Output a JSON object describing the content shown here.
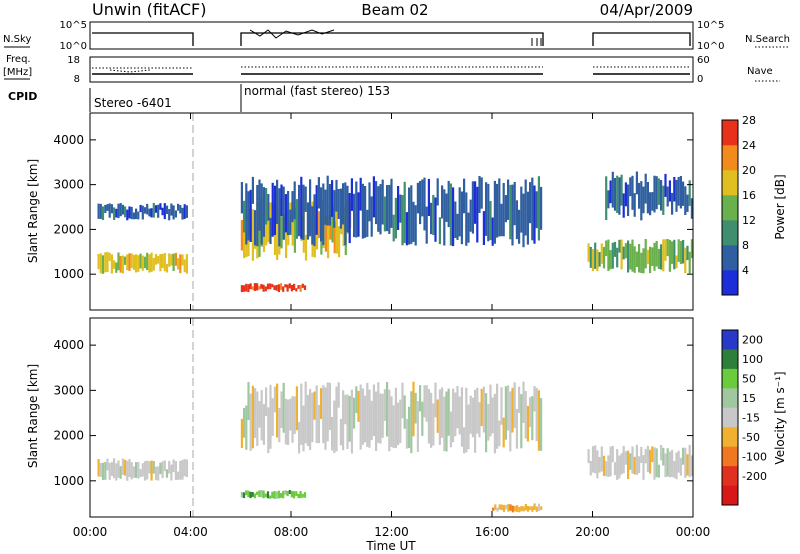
{
  "header": {
    "station": "Unwin (fitACF)",
    "beam": "Beam 02",
    "date": "04/Apr/2009"
  },
  "strip_labels": {
    "nsky": "N.Sky",
    "nsearch": "N.Search",
    "freq": "Freq.",
    "freq_unit": "[MHz]",
    "nave": "Nave",
    "cpid": "CPID",
    "nsky_ticks": [
      "10^5",
      "10^0"
    ],
    "freq_ticks": [
      "18",
      "8"
    ],
    "nave_ticks": [
      "60",
      "0"
    ]
  },
  "cpid_labels": [
    "Stereo -6401",
    "normal (fast stereo) 153"
  ],
  "chart_data": [
    {
      "type": "heatmap",
      "title": "",
      "xlabel": "Time UT",
      "ylabel": "Slant Range [km]",
      "colorbar_label": "Power [dB]",
      "x_ticks": [
        "00:00",
        "04:00",
        "08:00",
        "12:00",
        "16:00",
        "20:00",
        "00:00"
      ],
      "y_ticks": [
        1000,
        2000,
        3000,
        4000
      ],
      "ylim": [
        200,
        4600
      ],
      "xlim_hours": [
        0,
        24
      ],
      "colorbar_ticks": [
        4,
        8,
        12,
        16,
        20,
        24,
        28
      ],
      "colorbar_colors": [
        "#1c2ed8",
        "#2f5fa0",
        "#3f8f6f",
        "#6ab04c",
        "#e0c020",
        "#f28a1c",
        "#e8301a"
      ],
      "data_gaps_hours": [
        [
          4.2,
          6.0
        ],
        [
          18.0,
          19.8
        ]
      ],
      "echo_bands": [
        {
          "t": [
            0.3,
            3.9
          ],
          "range": [
            1000,
            1500
          ],
          "power": 20
        },
        {
          "t": [
            0.3,
            3.9
          ],
          "range": [
            2200,
            2600
          ],
          "power": 6
        },
        {
          "t": [
            6.0,
            8.6
          ],
          "range": [
            600,
            800
          ],
          "power": 28
        },
        {
          "t": [
            6.0,
            10.4
          ],
          "range": [
            1300,
            2700
          ],
          "power": 18
        },
        {
          "t": [
            6.0,
            18.0
          ],
          "range": [
            1600,
            3200
          ],
          "power": 8
        },
        {
          "t": [
            19.8,
            24.0
          ],
          "range": [
            1000,
            1800
          ],
          "power": 16
        },
        {
          "t": [
            20.5,
            24.0
          ],
          "range": [
            2200,
            3300
          ],
          "power": 8
        }
      ]
    },
    {
      "type": "heatmap",
      "title": "",
      "xlabel": "Time UT",
      "ylabel": "Slant Range [km]",
      "colorbar_label": "Velocity [m s⁻¹]",
      "x_ticks": [
        "00:00",
        "04:00",
        "08:00",
        "12:00",
        "16:00",
        "20:00",
        "00:00"
      ],
      "y_ticks": [
        1000,
        2000,
        3000,
        4000
      ],
      "ylim": [
        200,
        4600
      ],
      "xlim_hours": [
        0,
        24
      ],
      "colorbar_ticks": [
        200,
        100,
        50,
        15,
        -15,
        -50,
        -100,
        -200
      ],
      "colorbar_colors": [
        "#2838c8",
        "#2d7f3a",
        "#6acb3c",
        "#a0c8a0",
        "#c8c8c8",
        "#f0b030",
        "#f07820",
        "#e03020",
        "#d81818"
      ],
      "data_gaps_hours": [
        [
          4.2,
          6.0
        ],
        [
          18.0,
          19.8
        ]
      ],
      "echo_bands": [
        {
          "t": [
            0.3,
            3.9
          ],
          "range": [
            1000,
            1500
          ],
          "velocity": 0
        },
        {
          "t": [
            6.0,
            8.6
          ],
          "range": [
            600,
            800
          ],
          "velocity": 60
        },
        {
          "t": [
            6.0,
            18.0
          ],
          "range": [
            1600,
            3200
          ],
          "velocity": 0
        },
        {
          "t": [
            16.0,
            18.0
          ],
          "range": [
            300,
            500
          ],
          "velocity": -40
        },
        {
          "t": [
            19.8,
            24.0
          ],
          "range": [
            1000,
            1800
          ],
          "velocity": 10
        }
      ]
    }
  ]
}
